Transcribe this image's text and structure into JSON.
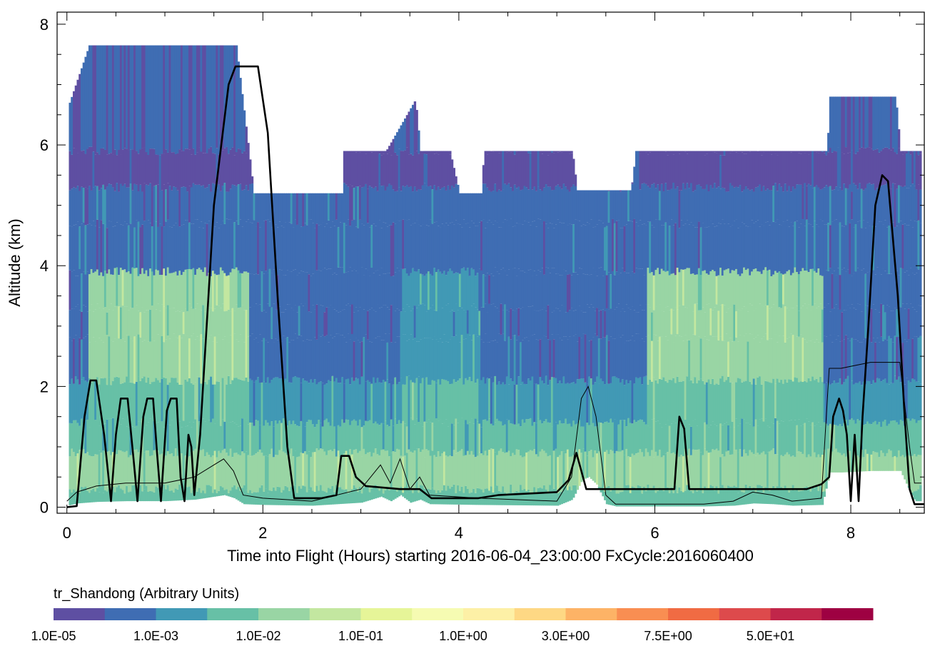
{
  "chart_data": {
    "type": "heatmap",
    "xlabel": "Time into Flight (Hours) starting 2016-06-04_23:00:00  FxCycle:2016060400",
    "ylabel": "Altitude (km)",
    "xlim": [
      -0.1,
      8.75
    ],
    "ylim": [
      -0.1,
      8.2
    ],
    "x_ticks": [
      0,
      2,
      4,
      6,
      8
    ],
    "y_ticks": [
      0,
      2,
      4,
      6,
      8
    ],
    "x_tick_labels": [
      "0",
      "2",
      "4",
      "6",
      "8"
    ],
    "y_tick_labels": [
      "0",
      "2",
      "4",
      "6",
      "8"
    ],
    "colorbar": {
      "title": "tr_Shandong (Arbitrary Units)",
      "colors": [
        "#5e4fa2",
        "#3f6db3",
        "#4199b5",
        "#67c0a6",
        "#99d5a4",
        "#c3e7a0",
        "#e6f598",
        "#f6fbb2",
        "#fdf0a6",
        "#fed884",
        "#fdb366",
        "#f98e52",
        "#f06b43",
        "#dd4a4c",
        "#c1264a",
        "#9e0142"
      ],
      "tick_labels": [
        "1.0E-05",
        "1.0E-03",
        "1.0E-02",
        "1.0E-01",
        "1.0E+00",
        "3.0E+00",
        "7.5E+00",
        "5.0E+01"
      ]
    },
    "model_top": [
      [
        0.02,
        6.7
      ],
      [
        0.22,
        7.65
      ],
      [
        1.72,
        7.65
      ],
      [
        1.85,
        5.9
      ],
      [
        1.9,
        5.2
      ],
      [
        2.8,
        5.2
      ],
      [
        2.82,
        5.9
      ],
      [
        3.25,
        5.9
      ],
      [
        3.55,
        6.75
      ],
      [
        3.6,
        5.9
      ],
      [
        3.9,
        5.9
      ],
      [
        4.0,
        5.2
      ],
      [
        4.22,
        5.2
      ],
      [
        4.25,
        5.9
      ],
      [
        5.15,
        5.9
      ],
      [
        5.2,
        5.25
      ],
      [
        5.75,
        5.25
      ],
      [
        5.8,
        5.9
      ],
      [
        7.75,
        5.9
      ],
      [
        7.78,
        6.8
      ],
      [
        8.45,
        6.8
      ],
      [
        8.5,
        5.9
      ],
      [
        8.72,
        5.9
      ]
    ],
    "layer_boundaries_km": [
      0.3,
      0.9,
      1.4,
      2.1,
      2.8,
      3.3,
      3.9,
      4.7,
      5.3,
      5.9
    ],
    "flight_altitude": [
      [
        0.0,
        0.0
      ],
      [
        0.1,
        0.02
      ],
      [
        0.18,
        1.5
      ],
      [
        0.24,
        2.1
      ],
      [
        0.3,
        2.1
      ],
      [
        0.38,
        1.2
      ],
      [
        0.45,
        0.1
      ],
      [
        0.5,
        1.2
      ],
      [
        0.55,
        1.8
      ],
      [
        0.62,
        1.8
      ],
      [
        0.68,
        0.8
      ],
      [
        0.72,
        0.1
      ],
      [
        0.78,
        1.5
      ],
      [
        0.82,
        1.8
      ],
      [
        0.88,
        1.8
      ],
      [
        0.92,
        0.9
      ],
      [
        0.96,
        0.1
      ],
      [
        1.02,
        1.6
      ],
      [
        1.06,
        1.8
      ],
      [
        1.12,
        1.8
      ],
      [
        1.16,
        0.5
      ],
      [
        1.2,
        0.1
      ],
      [
        1.24,
        1.2
      ],
      [
        1.27,
        1.0
      ],
      [
        1.3,
        0.2
      ],
      [
        1.36,
        1.2
      ],
      [
        1.5,
        5.0
      ],
      [
        1.65,
        7.0
      ],
      [
        1.72,
        7.3
      ],
      [
        1.95,
        7.3
      ],
      [
        2.05,
        6.2
      ],
      [
        2.15,
        3.5
      ],
      [
        2.25,
        1.0
      ],
      [
        2.32,
        0.15
      ],
      [
        2.6,
        0.15
      ],
      [
        2.75,
        0.2
      ],
      [
        2.8,
        0.85
      ],
      [
        2.88,
        0.85
      ],
      [
        2.95,
        0.5
      ],
      [
        3.05,
        0.35
      ],
      [
        3.4,
        0.3
      ],
      [
        3.6,
        0.3
      ],
      [
        3.72,
        0.15
      ],
      [
        4.2,
        0.15
      ],
      [
        4.4,
        0.2
      ],
      [
        5.0,
        0.25
      ],
      [
        5.12,
        0.45
      ],
      [
        5.2,
        0.9
      ],
      [
        5.25,
        0.6
      ],
      [
        5.3,
        0.3
      ],
      [
        6.2,
        0.3
      ],
      [
        6.25,
        1.5
      ],
      [
        6.3,
        1.3
      ],
      [
        6.35,
        0.3
      ],
      [
        7.55,
        0.3
      ],
      [
        7.7,
        0.38
      ],
      [
        7.78,
        0.5
      ],
      [
        7.82,
        1.5
      ],
      [
        7.88,
        1.8
      ],
      [
        7.92,
        1.6
      ],
      [
        7.96,
        1.2
      ],
      [
        8.0,
        0.1
      ],
      [
        8.04,
        1.2
      ],
      [
        8.08,
        0.1
      ],
      [
        8.12,
        1.5
      ],
      [
        8.18,
        3.0
      ],
      [
        8.25,
        5.0
      ],
      [
        8.32,
        5.5
      ],
      [
        8.38,
        5.4
      ],
      [
        8.48,
        3.5
      ],
      [
        8.55,
        1.5
      ],
      [
        8.6,
        0.3
      ],
      [
        8.65,
        0.05
      ],
      [
        8.75,
        0.05
      ]
    ],
    "terrain_height": [
      [
        0.0,
        0.1
      ],
      [
        0.1,
        0.25
      ],
      [
        0.3,
        0.35
      ],
      [
        0.6,
        0.4
      ],
      [
        1.0,
        0.4
      ],
      [
        1.3,
        0.5
      ],
      [
        1.5,
        0.7
      ],
      [
        1.6,
        0.8
      ],
      [
        1.7,
        0.6
      ],
      [
        1.8,
        0.2
      ],
      [
        2.0,
        0.15
      ],
      [
        2.5,
        0.1
      ],
      [
        3.0,
        0.3
      ],
      [
        3.1,
        0.5
      ],
      [
        3.2,
        0.7
      ],
      [
        3.3,
        0.4
      ],
      [
        3.4,
        0.8
      ],
      [
        3.5,
        0.3
      ],
      [
        3.6,
        0.5
      ],
      [
        3.7,
        0.2
      ],
      [
        4.2,
        0.15
      ],
      [
        5.0,
        0.1
      ],
      [
        5.15,
        0.5
      ],
      [
        5.25,
        1.8
      ],
      [
        5.32,
        2.0
      ],
      [
        5.4,
        1.5
      ],
      [
        5.5,
        0.2
      ],
      [
        5.6,
        0.05
      ],
      [
        6.5,
        0.05
      ],
      [
        6.8,
        0.1
      ],
      [
        7.0,
        0.25
      ],
      [
        7.2,
        0.2
      ],
      [
        7.4,
        0.1
      ],
      [
        7.7,
        0.15
      ],
      [
        7.78,
        2.3
      ],
      [
        7.9,
        2.3
      ],
      [
        8.2,
        2.4
      ],
      [
        8.5,
        2.4
      ],
      [
        8.6,
        1.0
      ],
      [
        8.65,
        0.4
      ],
      [
        8.72,
        0.4
      ]
    ]
  }
}
